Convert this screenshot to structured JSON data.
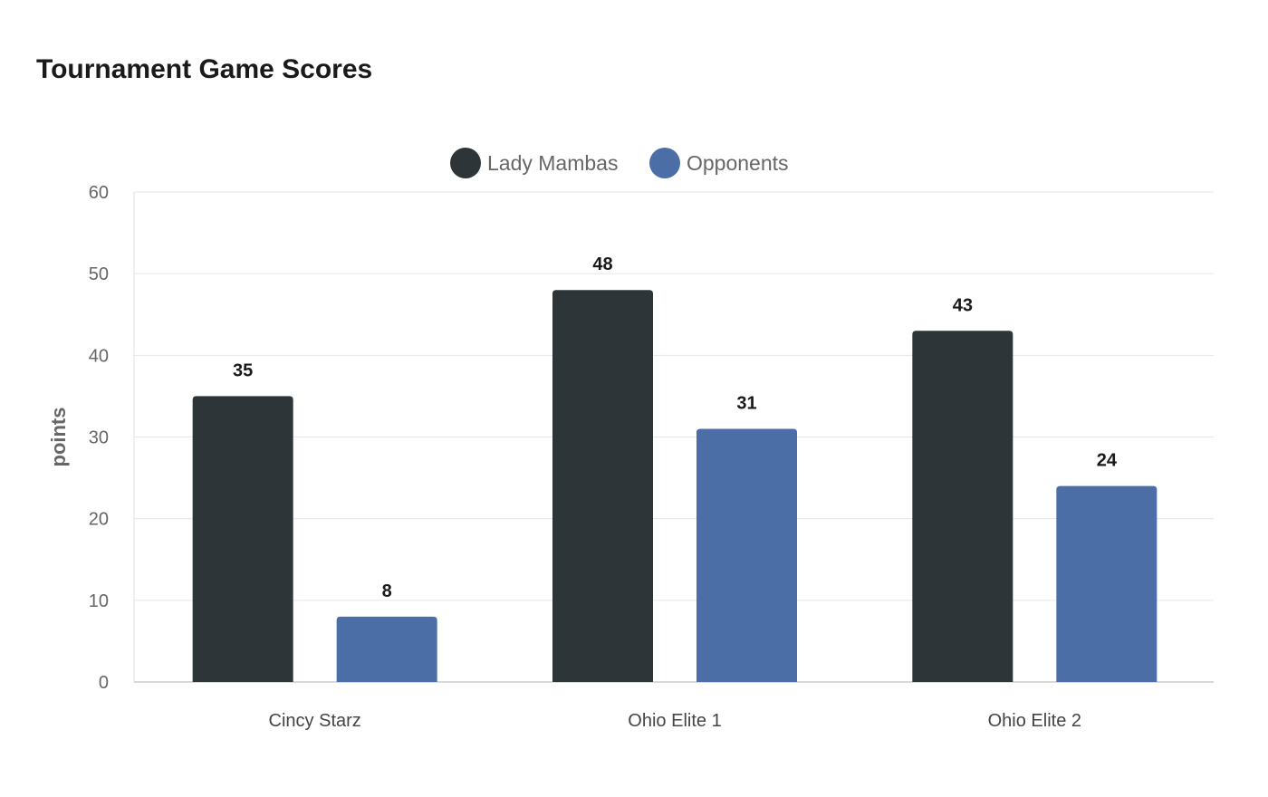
{
  "chart_data": {
    "type": "bar",
    "title": "Tournament Game Scores",
    "xlabel": "",
    "ylabel": "points",
    "categories": [
      "Cincy Starz",
      "Ohio Elite 1",
      "Ohio Elite 2"
    ],
    "series": [
      {
        "name": "Lady Mambas",
        "values": [
          35,
          48,
          43
        ],
        "color": "#2e3538"
      },
      {
        "name": "Opponents",
        "values": [
          8,
          31,
          24
        ],
        "color": "#4a6ea5"
      }
    ],
    "ylim": [
      0,
      60
    ],
    "yticks": [
      0,
      10,
      20,
      30,
      40,
      50,
      60
    ],
    "grid": true,
    "legend_position": "top-center",
    "data_labels": true
  }
}
